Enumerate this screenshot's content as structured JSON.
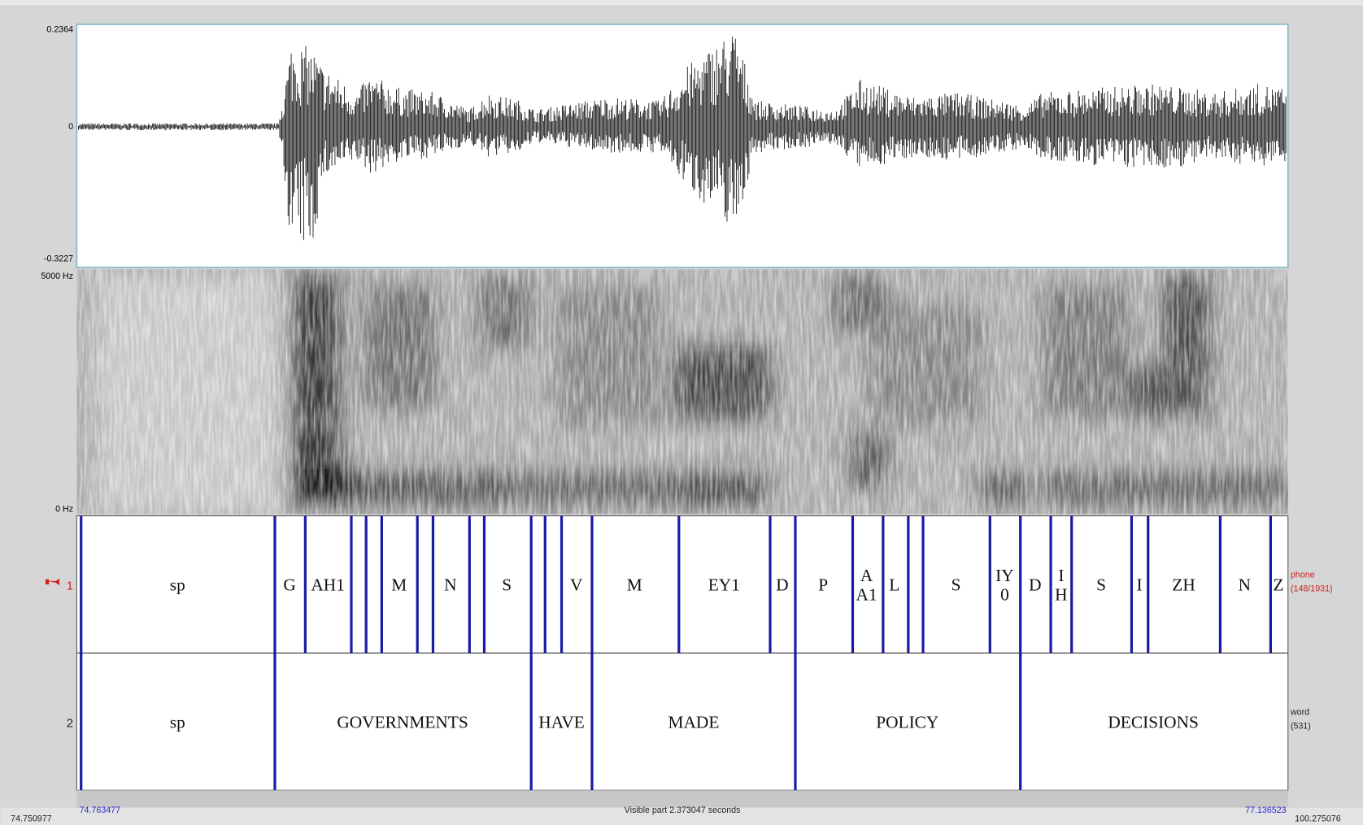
{
  "waveform": {
    "max_label": "0.2364",
    "zero_label": "0",
    "min_label": "-0.3227"
  },
  "spectrogram": {
    "top_label": "5000 Hz",
    "bottom_label": "0 Hz"
  },
  "tiers": [
    {
      "number": "1",
      "name": "phone",
      "count": "(148/1931)",
      "intervals": [
        {
          "lines": [
            "sp"
          ]
        },
        {
          "lines": [
            "G"
          ]
        },
        {
          "lines": [
            "AH1"
          ]
        },
        {
          "lines": [
            "M"
          ]
        },
        {
          "lines": [
            "N"
          ]
        },
        {
          "lines": [
            "S"
          ]
        },
        {
          "lines": [
            "V"
          ]
        },
        {
          "lines": [
            "M"
          ]
        },
        {
          "lines": [
            "EY1"
          ]
        },
        {
          "lines": [
            "D"
          ]
        },
        {
          "lines": [
            "P"
          ]
        },
        {
          "lines": [
            "A",
            "A1"
          ]
        },
        {
          "lines": [
            "L"
          ]
        },
        {
          "lines": [
            "S"
          ]
        },
        {
          "lines": [
            "IY",
            "0"
          ]
        },
        {
          "lines": [
            "D"
          ]
        },
        {
          "lines": [
            "I",
            "H"
          ]
        },
        {
          "lines": [
            "S"
          ]
        },
        {
          "lines": [
            "I"
          ]
        },
        {
          "lines": [
            "ZH"
          ]
        },
        {
          "lines": [
            "N"
          ]
        },
        {
          "lines": [
            "Z"
          ]
        }
      ]
    },
    {
      "number": "2",
      "name": "word",
      "count": "(531)",
      "intervals": [
        {
          "lines": [
            "sp"
          ]
        },
        {
          "lines": [
            "GOVERNMENTS"
          ]
        },
        {
          "lines": [
            "HAVE"
          ]
        },
        {
          "lines": [
            "MADE"
          ]
        },
        {
          "lines": [
            "POLICY"
          ]
        },
        {
          "lines": [
            "DECISIONS"
          ]
        }
      ]
    }
  ],
  "footer": {
    "window_start": "74.750977",
    "visible_start": "74.763477",
    "visible_part": "Visible part 2.373047 seconds",
    "visible_end": "77.136523",
    "window_end": "100.275076"
  }
}
